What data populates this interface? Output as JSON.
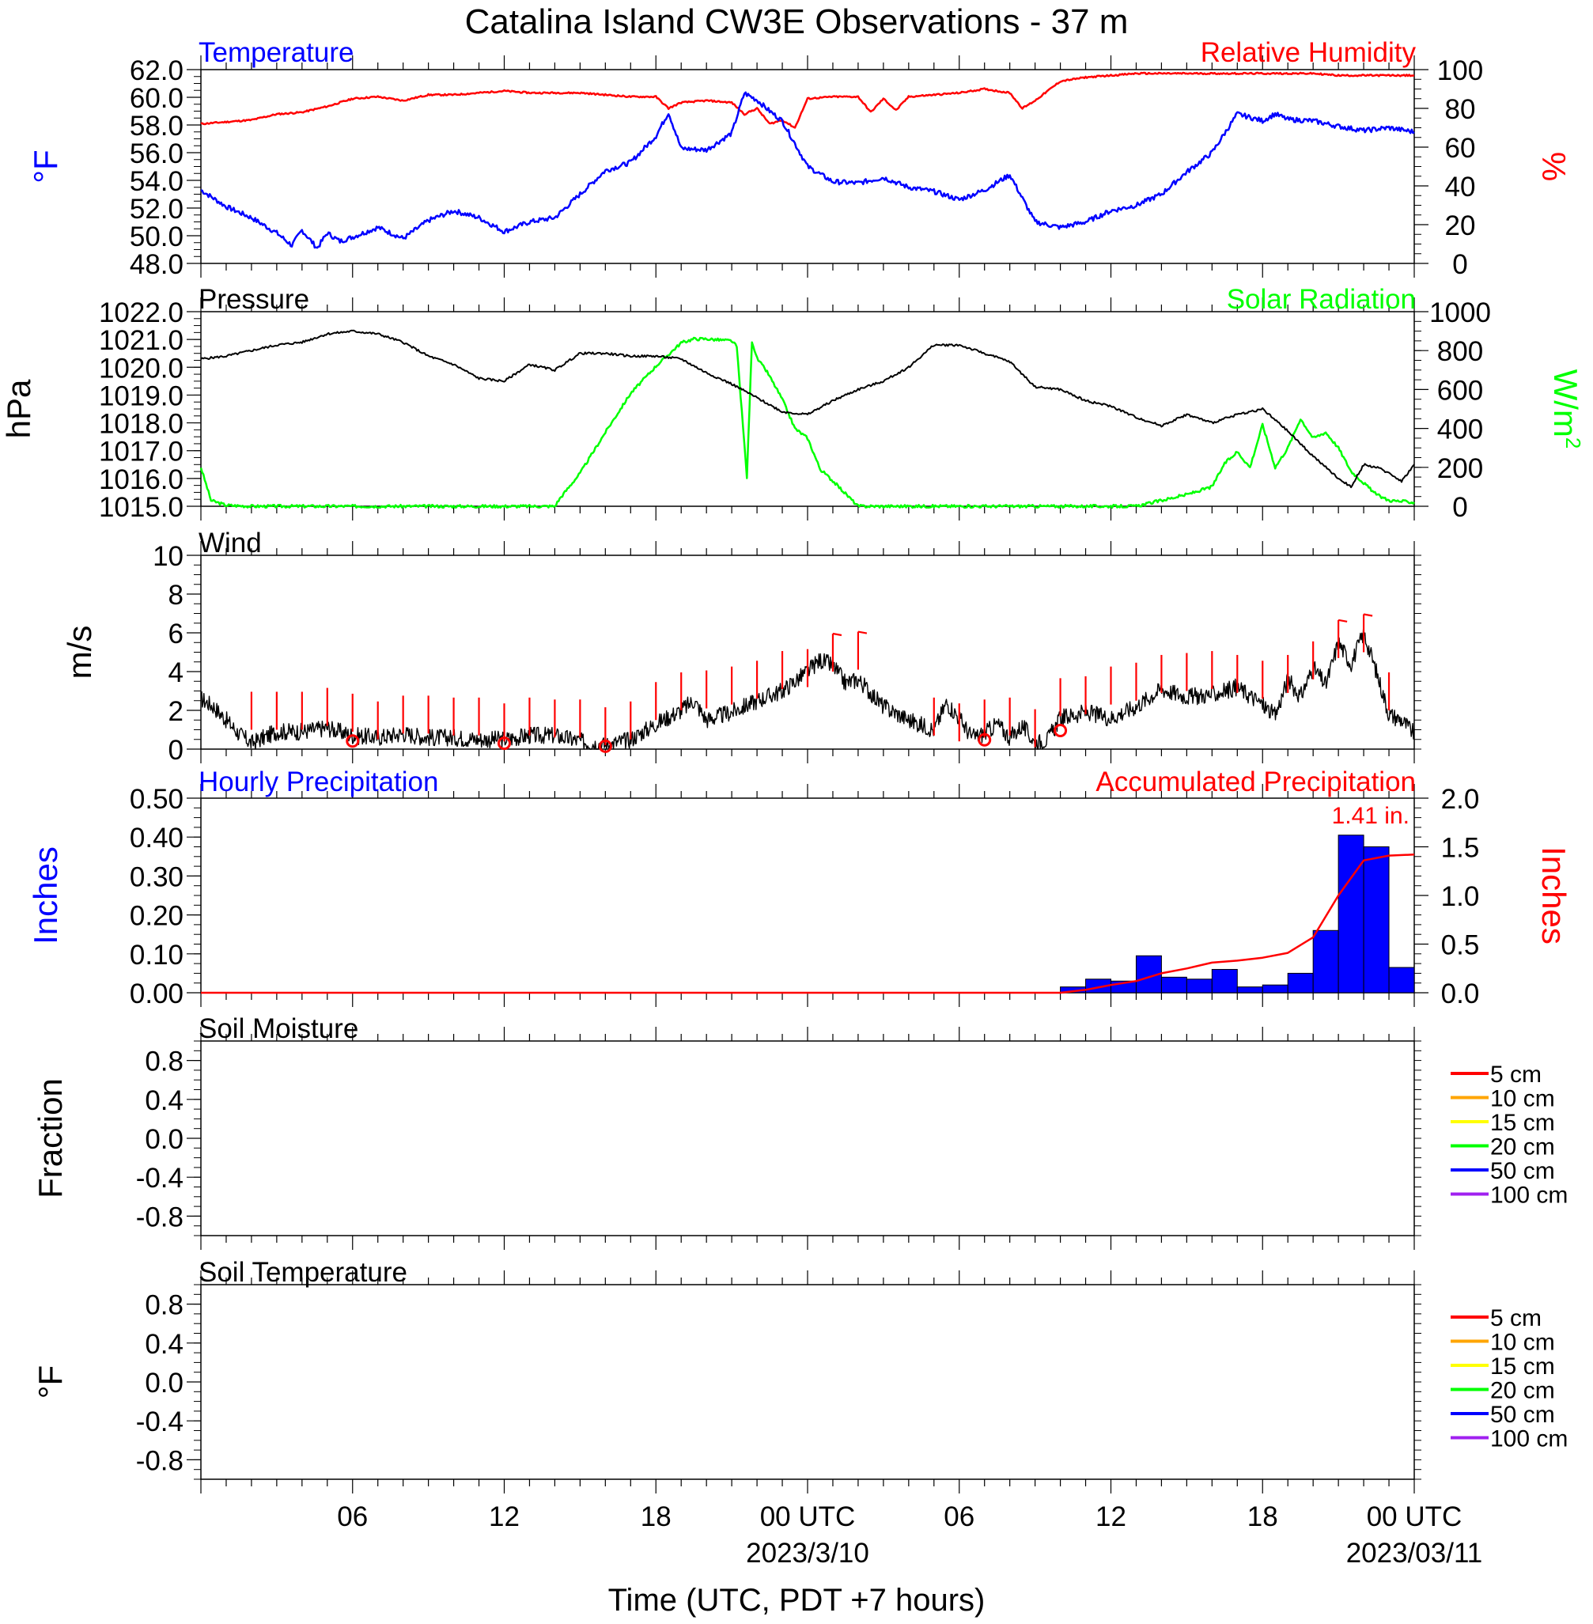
{
  "title": "Catalina Island CW3E Observations - 37 m",
  "xlabel": "Time (UTC, PDT +7 hours)",
  "xaxis": {
    "tick_labels": [
      "06",
      "12",
      "18",
      "00 UTC",
      "06",
      "12",
      "18",
      "00 UTC"
    ],
    "date_labels": [
      "2023/3/10",
      "2023/03/11"
    ]
  },
  "colors": {
    "temperature": "#0000ff",
    "humidity": "#ff0000",
    "pressure": "#000000",
    "solar": "#00ff00",
    "wind": "#000000",
    "wind_barb": "#ff0000",
    "hourly_precip": "#0000ff",
    "accum_precip": "#ff0000"
  },
  "chart_data": [
    {
      "type": "line",
      "left_title": "Temperature",
      "right_title": "Relative Humidity",
      "left_unit": "°F",
      "right_unit": "%",
      "left_ticks": [
        "62.0",
        "60.0",
        "58.0",
        "56.0",
        "54.0",
        "52.0",
        "50.0",
        "48.0"
      ],
      "right_ticks": [
        "100",
        "80",
        "60",
        "40",
        "20",
        "0"
      ],
      "left_ylim": [
        48,
        62
      ],
      "right_ylim": [
        0,
        100
      ],
      "xlim_hours": [
        0,
        48
      ],
      "series": [
        {
          "name": "Temperature",
          "axis": "left",
          "x_hours": [
            0,
            1,
            2,
            3,
            3.6,
            4,
            4.6,
            5,
            5.5,
            6,
            7,
            8,
            9,
            10,
            11,
            12,
            13,
            14,
            15,
            16,
            17,
            18,
            18.5,
            19,
            20,
            21,
            21.5,
            22,
            22.5,
            23,
            24,
            25,
            26,
            27,
            28,
            29,
            30,
            31,
            32,
            33,
            34,
            35,
            36,
            37,
            38,
            39,
            40,
            41,
            42,
            42.5,
            43,
            44,
            45,
            46,
            47,
            48
          ],
          "values": [
            53.3,
            52.1,
            51.3,
            50.2,
            49.3,
            50.4,
            49.1,
            50.2,
            49.6,
            49.9,
            50.6,
            49.8,
            51.1,
            51.8,
            51.3,
            50.3,
            51.0,
            51.3,
            53.0,
            54.7,
            55.3,
            57.2,
            58.9,
            56.3,
            56.2,
            57.4,
            60.3,
            59.8,
            59.0,
            58.3,
            55.0,
            53.9,
            53.8,
            54.2,
            53.5,
            53.2,
            52.6,
            53.3,
            54.4,
            51.0,
            50.6,
            51.0,
            51.8,
            52.2,
            53.0,
            54.6,
            56.0,
            58.8,
            58.3,
            58.8,
            58.4,
            58.3,
            57.9,
            57.6,
            57.8,
            57.5
          ]
        },
        {
          "name": "Relative Humidity",
          "axis": "right",
          "x_hours": [
            0,
            1,
            2,
            3,
            4,
            5,
            6,
            7,
            8,
            9,
            10,
            11,
            12,
            13,
            14,
            15,
            16,
            17,
            18,
            18.5,
            19,
            20,
            21,
            21.5,
            22,
            22.5,
            23,
            23.5,
            24,
            25,
            26,
            26.5,
            27,
            27.5,
            28,
            29,
            30,
            31,
            32,
            32.5,
            33,
            34,
            35,
            36,
            37,
            38,
            39,
            40,
            41,
            42,
            43,
            44,
            45,
            46,
            47,
            48
          ],
          "values": [
            72,
            73,
            74,
            77,
            78,
            81,
            85,
            86,
            84,
            87,
            87,
            88,
            89,
            88,
            88,
            88,
            87,
            86,
            86,
            80,
            83,
            84,
            83,
            77,
            80,
            72,
            74,
            70,
            85,
            86,
            86,
            78,
            85,
            79,
            86,
            87,
            88,
            90,
            88,
            80,
            84,
            94,
            96,
            97,
            98,
            98,
            98,
            98,
            98,
            98,
            98,
            98,
            97,
            97,
            97,
            97
          ]
        }
      ]
    },
    {
      "type": "line",
      "left_title": "Pressure",
      "right_title": "Solar Radiation",
      "left_unit": "hPa",
      "right_unit": "W/m2",
      "left_ticks": [
        "1022.0",
        "1021.0",
        "1020.0",
        "1019.0",
        "1018.0",
        "1017.0",
        "1016.0",
        "1015.0"
      ],
      "right_ticks": [
        "1000",
        "800",
        "600",
        "400",
        "200",
        "0"
      ],
      "left_ylim": [
        1015,
        1022
      ],
      "right_ylim": [
        0,
        1000
      ],
      "series": [
        {
          "name": "Pressure",
          "axis": "left",
          "x_hours": [
            0,
            1,
            2,
            3,
            4,
            5,
            6,
            7,
            8,
            9,
            10,
            11,
            12,
            13,
            14,
            15,
            16,
            17,
            18,
            19,
            20,
            21,
            22,
            23,
            24,
            25,
            26,
            27,
            28,
            29,
            30,
            31,
            32,
            33,
            34,
            35,
            36,
            37,
            38,
            39,
            40,
            41,
            42,
            43,
            44,
            45,
            45.5,
            46,
            46.5,
            47,
            47.5,
            48
          ],
          "values": [
            1020.3,
            1020.4,
            1020.6,
            1020.8,
            1020.9,
            1021.2,
            1021.3,
            1021.2,
            1020.9,
            1020.4,
            1020.1,
            1019.6,
            1019.5,
            1020.1,
            1019.9,
            1020.5,
            1020.5,
            1020.4,
            1020.4,
            1020.3,
            1019.8,
            1019.4,
            1018.9,
            1018.4,
            1018.3,
            1018.8,
            1019.2,
            1019.5,
            1020.0,
            1020.8,
            1020.8,
            1020.5,
            1020.2,
            1019.3,
            1019.2,
            1018.8,
            1018.6,
            1018.2,
            1017.9,
            1018.3,
            1018.0,
            1018.3,
            1018.5,
            1017.7,
            1016.8,
            1016.0,
            1015.7,
            1016.5,
            1016.4,
            1016.2,
            1015.9,
            1016.5
          ]
        },
        {
          "name": "Solar Radiation",
          "axis": "right",
          "x_hours": [
            0,
            0.4,
            1,
            2,
            13,
            14,
            14.2,
            15,
            16,
            17,
            18,
            19,
            19.5,
            20,
            21,
            21.2,
            21.6,
            21.8,
            22,
            22.4,
            23,
            23.5,
            24,
            24.5,
            25,
            26,
            37,
            38,
            39,
            40,
            40.5,
            41,
            41.5,
            42,
            42.5,
            43,
            43.5,
            44,
            44.5,
            45,
            45.5,
            46,
            46.5,
            47,
            48
          ],
          "values": [
            200,
            30,
            5,
            0,
            0,
            0,
            40,
            170,
            380,
            580,
            720,
            840,
            860,
            860,
            850,
            820,
            150,
            850,
            760,
            690,
            550,
            400,
            350,
            190,
            130,
            0,
            0,
            30,
            60,
            100,
            220,
            280,
            200,
            420,
            200,
            300,
            450,
            350,
            380,
            300,
            180,
            120,
            60,
            30,
            20
          ]
        }
      ]
    },
    {
      "type": "line",
      "title": "Wind",
      "left_unit": "m/s",
      "left_ticks": [
        "10",
        "8",
        "6",
        "4",
        "2",
        "0"
      ],
      "ylim": [
        0,
        10
      ],
      "series": [
        {
          "name": "Wind",
          "x_hours": [
            0,
            0.5,
            1,
            1.5,
            2,
            3,
            4,
            5,
            6,
            7,
            8,
            9,
            10,
            11,
            12,
            13,
            14,
            15,
            16,
            17,
            17.5,
            18,
            19,
            19.5,
            20,
            21,
            22,
            23,
            24,
            24.5,
            25,
            25.5,
            26,
            27,
            28,
            29,
            29.5,
            30,
            30.5,
            31,
            31.5,
            32,
            32.5,
            33,
            33.5,
            34,
            35,
            36,
            37,
            38,
            39,
            40,
            41,
            42,
            42.5,
            43,
            43.5,
            44,
            44.5,
            45,
            45.5,
            46,
            46.5,
            47,
            47.5,
            48
          ],
          "values": [
            2.6,
            2.2,
            1.5,
            0.8,
            0.3,
            0.9,
            0.9,
            1.1,
            0.7,
            0.6,
            0.8,
            0.6,
            0.6,
            0.5,
            0.5,
            0.7,
            0.7,
            0.4,
            0.2,
            0.5,
            0.9,
            1.3,
            2.0,
            2.5,
            1.5,
            1.9,
            2.5,
            3.0,
            4.0,
            4.6,
            4.3,
            3.4,
            3.6,
            2.2,
            1.5,
            1.0,
            2.4,
            1.6,
            0.6,
            0.8,
            1.3,
            0.6,
            1.2,
            0.3,
            0.5,
            1.6,
            1.9,
            1.6,
            2.2,
            3.1,
            2.7,
            2.8,
            3.2,
            2.3,
            1.7,
            3.6,
            2.7,
            4.2,
            3.3,
            5.5,
            4.4,
            6.0,
            4.0,
            1.8,
            1.5,
            0.8
          ]
        },
        {
          "name": "Wind Barbs",
          "x_hours": [
            2,
            3,
            4,
            5,
            6,
            7,
            8,
            9,
            10,
            11,
            12,
            13,
            14,
            15,
            16,
            17,
            18,
            19,
            20,
            21,
            22,
            23,
            24,
            25,
            26,
            29,
            30,
            31,
            32,
            33,
            34,
            35,
            36,
            37,
            38,
            39,
            40,
            41,
            42,
            43,
            44,
            45,
            46,
            47
          ],
          "values": [
            1.0,
            1.0,
            1.0,
            1.2,
            0.9,
            0.5,
            0.8,
            0.8,
            0.7,
            0.7,
            0.4,
            0.7,
            0.6,
            0.6,
            0.2,
            0.5,
            1.5,
            2.0,
            2.1,
            2.3,
            2.6,
            3.1,
            3.2,
            4.0,
            4.1,
            0.7,
            0.4,
            0.6,
            0.7,
            0.1,
            1.7,
            1.8,
            2.3,
            2.5,
            2.9,
            3.0,
            3.1,
            2.9,
            2.6,
            2.9,
            3.6,
            4.7,
            5.0,
            2.0
          ],
          "calm_x_hours": [
            6,
            12,
            16,
            31,
            34
          ]
        }
      ]
    },
    {
      "type": "bar",
      "left_title": "Hourly Precipitation",
      "right_title": "Accumulated Precipitation",
      "left_unit": "Inches",
      "right_unit": "Inches",
      "left_ticks": [
        "0.50",
        "0.40",
        "0.30",
        "0.20",
        "0.10",
        "0.00"
      ],
      "right_ticks": [
        "2.0",
        "1.5",
        "1.0",
        "0.5",
        "0.0"
      ],
      "left_ylim": [
        0,
        0.5
      ],
      "right_ylim": [
        0,
        2.0
      ],
      "total_label": "1.41 in.",
      "bar_hours": [
        34,
        35,
        36,
        37,
        38,
        39,
        40,
        41,
        42,
        43,
        44,
        45,
        46,
        47
      ],
      "bar_values": [
        0.015,
        0.035,
        0.03,
        0.095,
        0.04,
        0.035,
        0.06,
        0.015,
        0.02,
        0.05,
        0.16,
        0.405,
        0.375,
        0.065
      ],
      "series": [
        {
          "name": "Accumulated Precipitation",
          "axis": "right",
          "x_hours": [
            0,
            34,
            35,
            36,
            37,
            38,
            39,
            40,
            41,
            42,
            43,
            44,
            45,
            46,
            47,
            48
          ],
          "values": [
            0,
            0,
            0.03,
            0.08,
            0.12,
            0.2,
            0.25,
            0.31,
            0.33,
            0.36,
            0.41,
            0.57,
            1.0,
            1.36,
            1.41,
            1.42
          ]
        }
      ]
    },
    {
      "type": "line",
      "title": "Soil Moisture",
      "left_unit": "Fraction",
      "left_ticks": [
        "0.8",
        "0.4",
        "0.0",
        "-0.4",
        "-0.8"
      ],
      "legend": [
        "5 cm",
        "10 cm",
        "15 cm",
        "20 cm",
        "50 cm",
        "100 cm"
      ],
      "legend_colors": [
        "#ff0000",
        "#ffa500",
        "#ffff00",
        "#00ff00",
        "#0000ff",
        "#a020f0"
      ]
    },
    {
      "type": "line",
      "title": "Soil Temperature",
      "left_unit": "°F",
      "left_ticks": [
        "0.8",
        "0.4",
        "0.0",
        "-0.4",
        "-0.8"
      ],
      "legend": [
        "5 cm",
        "10 cm",
        "15 cm",
        "20 cm",
        "50 cm",
        "100 cm"
      ],
      "legend_colors": [
        "#ff0000",
        "#ffa500",
        "#ffff00",
        "#00ff00",
        "#0000ff",
        "#a020f0"
      ]
    }
  ]
}
